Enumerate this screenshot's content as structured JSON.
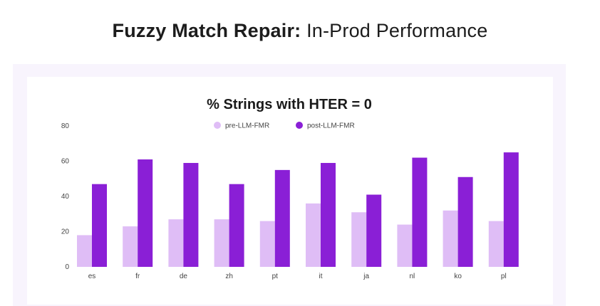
{
  "page": {
    "title_bold": "Fuzzy Match Repair:",
    "title_light": "In-Prod Performance"
  },
  "colors": {
    "pre": "#dfbdf6",
    "post": "#8a1fd6",
    "panel_outer": "#f8f4fd"
  },
  "chart_data": {
    "type": "bar",
    "title": "% Strings with HTER = 0",
    "xlabel": "",
    "ylabel": "",
    "ylim": [
      0,
      80
    ],
    "yticks": [
      0,
      20,
      40,
      60,
      80
    ],
    "grid": false,
    "legend_position": "top-center",
    "categories": [
      "es",
      "fr",
      "de",
      "zh",
      "pt",
      "it",
      "ja",
      "nl",
      "ko",
      "pl"
    ],
    "series": [
      {
        "name": "pre-LLM-FMR",
        "color": "#dfbdf6",
        "values": [
          18,
          23,
          27,
          27,
          26,
          36,
          31,
          24,
          32,
          26
        ]
      },
      {
        "name": "post-LLM-FMR",
        "color": "#8a1fd6",
        "values": [
          47,
          61,
          59,
          47,
          55,
          59,
          41,
          62,
          51,
          65
        ]
      }
    ]
  }
}
